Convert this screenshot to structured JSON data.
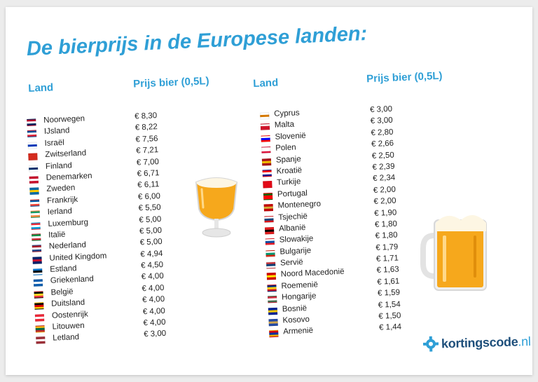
{
  "title": "De bierprijs in de Europese landen:",
  "headers": {
    "country": "Land",
    "price": "Prijs bier (0,5L)"
  },
  "left": [
    {
      "country": "Noorwegen",
      "price": "€ 8,30",
      "flag": [
        "#ba0c2f",
        "#ffffff",
        "#00205b"
      ]
    },
    {
      "country": "IJsland",
      "price": "€ 8,22",
      "flag": [
        "#02529c",
        "#ffffff",
        "#dc1e35"
      ]
    },
    {
      "country": "Israël",
      "price": "€ 7,56",
      "flag": [
        "#ffffff",
        "#0038b8",
        "#ffffff"
      ]
    },
    {
      "country": "Zwitserland",
      "price": "€ 7,21",
      "flag": [
        "#d52b1e",
        "#d52b1e",
        "#d52b1e"
      ]
    },
    {
      "country": "Finland",
      "price": "€ 7,00",
      "flag": [
        "#ffffff",
        "#002f6c",
        "#ffffff"
      ]
    },
    {
      "country": "Denemarken",
      "price": "€ 6,71",
      "flag": [
        "#c8102e",
        "#ffffff",
        "#c8102e"
      ]
    },
    {
      "country": "Zweden",
      "price": "€ 6,11",
      "flag": [
        "#006aa7",
        "#fecc00",
        "#006aa7"
      ]
    },
    {
      "country": "Frankrijk",
      "price": "€ 6,00",
      "flag": [
        "#0055a4",
        "#ffffff",
        "#ef4135"
      ]
    },
    {
      "country": "Ierland",
      "price": "€ 5,50",
      "flag": [
        "#169b62",
        "#ffffff",
        "#ff883e"
      ]
    },
    {
      "country": "Luxemburg",
      "price": "€ 5,00",
      "flag": [
        "#ed2939",
        "#ffffff",
        "#00a1de"
      ]
    },
    {
      "country": "Italië",
      "price": "€ 5,00",
      "flag": [
        "#009246",
        "#ffffff",
        "#ce2b37"
      ]
    },
    {
      "country": "Nederland",
      "price": "€ 5,00",
      "flag": [
        "#ae1c28",
        "#ffffff",
        "#21468b"
      ]
    },
    {
      "country": "United Kingdom",
      "price": "€ 4,94",
      "flag": [
        "#012169",
        "#c8102e",
        "#012169"
      ]
    },
    {
      "country": "Estland",
      "price": "€ 4,50",
      "flag": [
        "#0072ce",
        "#000000",
        "#ffffff"
      ]
    },
    {
      "country": "Griekenland",
      "price": "€ 4,00",
      "flag": [
        "#0d5eaf",
        "#ffffff",
        "#0d5eaf"
      ]
    },
    {
      "country": "België",
      "price": "€ 4,00",
      "flag": [
        "#000000",
        "#fdda24",
        "#ef3340"
      ]
    },
    {
      "country": "Duitsland",
      "price": "€ 4,00",
      "flag": [
        "#000000",
        "#dd0000",
        "#ffce00"
      ]
    },
    {
      "country": "Oostenrijk",
      "price": "€ 4,00",
      "flag": [
        "#ed2939",
        "#ffffff",
        "#ed2939"
      ]
    },
    {
      "country": "Litouwen",
      "price": "€ 4,00",
      "flag": [
        "#fdb913",
        "#006a44",
        "#c1272d"
      ]
    },
    {
      "country": "Letland",
      "price": "€ 3,00",
      "flag": [
        "#9e3039",
        "#ffffff",
        "#9e3039"
      ]
    }
  ],
  "right": [
    {
      "country": "Cyprus",
      "price": "€ 3,00",
      "flag": [
        "#ffffff",
        "#d57800",
        "#ffffff"
      ]
    },
    {
      "country": "Malta",
      "price": "€ 3,00",
      "flag": [
        "#ffffff",
        "#cf142b",
        "#cf142b"
      ]
    },
    {
      "country": "Slovenië",
      "price": "€ 2,80",
      "flag": [
        "#ffffff",
        "#0000ff",
        "#ff0000"
      ]
    },
    {
      "country": "Polen",
      "price": "€ 2,66",
      "flag": [
        "#ffffff",
        "#ffffff",
        "#dc143c"
      ]
    },
    {
      "country": "Spanje",
      "price": "€ 2,50",
      "flag": [
        "#aa151b",
        "#f1bf00",
        "#aa151b"
      ]
    },
    {
      "country": "Kroatië",
      "price": "€ 2,39",
      "flag": [
        "#ff0000",
        "#ffffff",
        "#171796"
      ]
    },
    {
      "country": "Turkije",
      "price": "€ 2,34",
      "flag": [
        "#e30a17",
        "#e30a17",
        "#e30a17"
      ]
    },
    {
      "country": "Portugal",
      "price": "€ 2,00",
      "flag": [
        "#006600",
        "#ff0000",
        "#ff0000"
      ]
    },
    {
      "country": "Montenegro",
      "price": "€ 2,00",
      "flag": [
        "#c40308",
        "#d4af37",
        "#c40308"
      ]
    },
    {
      "country": "Tsjechië",
      "price": "€ 1,90",
      "flag": [
        "#ffffff",
        "#11457e",
        "#d7141a"
      ]
    },
    {
      "country": "Albanië",
      "price": "€ 1,80",
      "flag": [
        "#e41e20",
        "#000000",
        "#e41e20"
      ]
    },
    {
      "country": "Slowakije",
      "price": "€ 1,80",
      "flag": [
        "#ffffff",
        "#0b4ea2",
        "#ee1c25"
      ]
    },
    {
      "country": "Bulgarije",
      "price": "€ 1,79",
      "flag": [
        "#ffffff",
        "#00966e",
        "#d62612"
      ]
    },
    {
      "country": "Servië",
      "price": "€ 1,71",
      "flag": [
        "#c6363c",
        "#0c4076",
        "#ffffff"
      ]
    },
    {
      "country": "Noord Macedonië",
      "price": "€ 1,63",
      "flag": [
        "#d20000",
        "#ffe600",
        "#d20000"
      ]
    },
    {
      "country": "Roemenië",
      "price": "€ 1,61",
      "flag": [
        "#002b7f",
        "#fcd116",
        "#ce1126"
      ]
    },
    {
      "country": "Hongarije",
      "price": "€ 1,59",
      "flag": [
        "#cd2a3e",
        "#ffffff",
        "#436f4d"
      ]
    },
    {
      "country": "Bosnië",
      "price": "€ 1,54",
      "flag": [
        "#002395",
        "#fecb00",
        "#002395"
      ]
    },
    {
      "country": "Kosovo",
      "price": "€ 1,50",
      "flag": [
        "#244aa5",
        "#d0a650",
        "#244aa5"
      ]
    },
    {
      "country": "Armenië",
      "price": "€ 1,44",
      "flag": [
        "#d90012",
        "#0033a0",
        "#f2a800"
      ]
    }
  ],
  "logo": {
    "name": "kortingscode",
    "tld": ".nl"
  },
  "colors": {
    "accent": "#2f9fd6",
    "logo_dark": "#1e4f7b",
    "beer": "#f6a81c",
    "foam": "#fdf6e3"
  }
}
